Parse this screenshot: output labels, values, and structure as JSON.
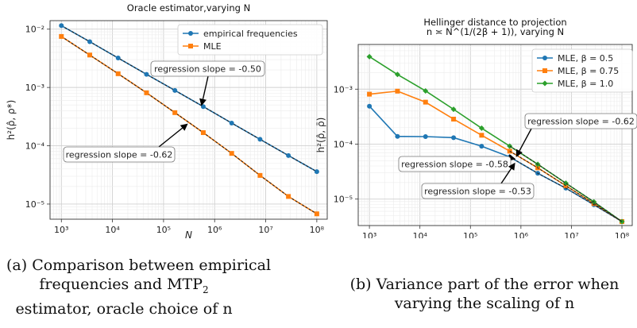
{
  "chart_data": [
    {
      "type": "line",
      "title": "Oracle estimator,varying N",
      "xlabel": "N",
      "ylabel": "h²(ρ̂, ρ*)",
      "xscale": "log",
      "yscale": "log",
      "xlim": [
        600,
        160000000
      ],
      "ylim": [
        5.5e-06,
        0.014
      ],
      "xticks": [
        1000,
        10000,
        100000,
        1000000,
        10000000,
        100000000
      ],
      "xtick_labels": [
        "10³",
        "10⁴",
        "10⁵",
        "10⁶",
        "10⁷",
        "10⁸"
      ],
      "yticks": [
        1e-05,
        0.0001,
        0.001,
        0.01
      ],
      "ytick_labels": [
        "10⁻⁵",
        "10⁻⁴",
        "10⁻³",
        "10⁻²"
      ],
      "grid": true,
      "legend_position": "top-right",
      "x": [
        1000,
        3594,
        12915,
        46416,
        166810,
        599484,
        2154435,
        7742637,
        27825594,
        100000000
      ],
      "series": [
        {
          "name": "empirical frequencies",
          "color": "#1f77b4",
          "marker": "circle",
          "values": [
            0.0115,
            0.0061,
            0.0032,
            0.00168,
            0.00089,
            0.00047,
            0.000245,
            0.000129,
            6.8e-05,
            3.6e-05
          ]
        },
        {
          "name": "MLE",
          "color": "#ff7f0e",
          "marker": "square",
          "values": [
            0.0075,
            0.0036,
            0.00172,
            0.00081,
            0.00037,
            0.000168,
            7.4e-05,
            3.1e-05,
            1.35e-05,
            6.8e-06
          ]
        }
      ],
      "annotations": [
        {
          "text": "regression slope = -0.50",
          "arrow_to": [
            550000,
            0.00048
          ]
        },
        {
          "text": "regression slope = -0.62",
          "arrow_to": [
            300000,
            0.00024
          ]
        }
      ]
    },
    {
      "type": "line",
      "title": "Hellinger distance to projection",
      "subtitle": "n ≍ N^(1/(2β + 1)), varying N",
      "xlabel": "N",
      "ylabel": "h²(ρ̂, ρ̄)",
      "xscale": "log",
      "yscale": "log",
      "xlim": [
        600,
        160000000
      ],
      "ylim": [
        3.3e-06,
        0.0065
      ],
      "xticks": [
        1000,
        10000,
        100000,
        1000000,
        10000000,
        100000000
      ],
      "xtick_labels": [
        "10³",
        "10⁴",
        "10⁵",
        "10⁶",
        "10⁷",
        "10⁸"
      ],
      "yticks": [
        1e-05,
        0.0001,
        0.001
      ],
      "ytick_labels": [
        "10⁻⁵",
        "10⁻⁴",
        "10⁻³"
      ],
      "grid": true,
      "legend_position": "top-right",
      "x": [
        1000,
        3594,
        12915,
        46416,
        166810,
        599484,
        2154435,
        7742637,
        27825594,
        100000000
      ],
      "series": [
        {
          "name": "MLE, β = 0.5",
          "color": "#1f77b4",
          "marker": "circle",
          "values": [
            0.00049,
            0.000138,
            0.000137,
            0.000131,
            9.15e-05,
            5.85e-05,
            2.95e-05,
            1.58e-05,
            7.9e-06,
            3.9e-06
          ]
        },
        {
          "name": "MLE, β = 0.75",
          "color": "#ff7f0e",
          "marker": "square",
          "values": [
            0.00081,
            0.00092,
            0.00058,
            0.000285,
            0.000145,
            7.45e-05,
            3.7e-05,
            1.75e-05,
            8.3e-06,
            3.9e-06
          ]
        },
        {
          "name": "MLE, β = 1.0",
          "color": "#2ca02c",
          "marker": "plus",
          "values": [
            0.0039,
            0.00185,
            0.00093,
            0.00043,
            0.000195,
            9.2e-05,
            4.3e-05,
            1.95e-05,
            8.9e-06,
            3.9e-06
          ]
        }
      ],
      "annotations": [
        {
          "text": "regression slope = -0.62",
          "arrow_to": [
            800000,
            5.8e-05
          ]
        },
        {
          "text": "regression slope = -0.58",
          "arrow_to": [
            790000,
            5.35e-05
          ]
        },
        {
          "text": "regression slope = -0.53",
          "arrow_to": [
            770000,
            4.6e-05
          ]
        }
      ]
    }
  ],
  "captions": {
    "a_line1": "(a) Comparison between empirical",
    "a_line2": "frequencies and MTP",
    "a_line2_sub": "2",
    "a_line3": "estimator, oracle choice of n",
    "b_line1": "(b) Variance part of the error when",
    "b_line2": "varying the scaling of n"
  }
}
